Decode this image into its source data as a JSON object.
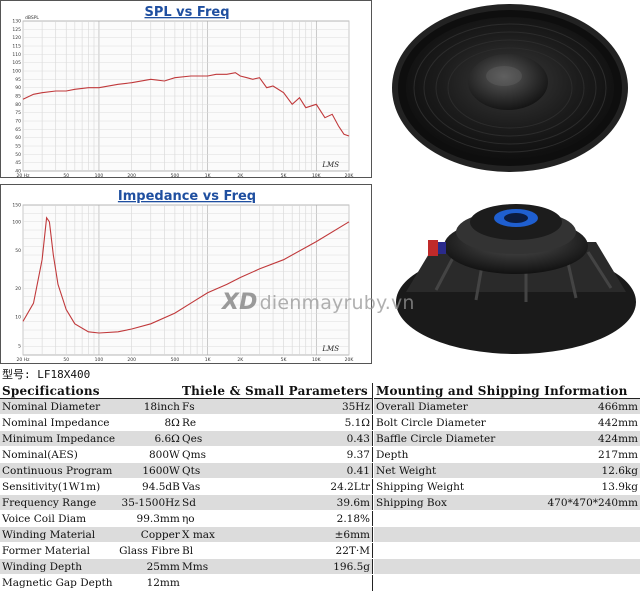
{
  "chart_data": [
    {
      "type": "line",
      "title": "SPL vs Freq",
      "y_unit": "dBSPL",
      "x_scale": "log",
      "xlim": [
        20,
        20000
      ],
      "ylim": [
        40,
        130
      ],
      "x_ticks": [
        "20 Hz",
        "50",
        "100",
        "200",
        "500",
        "1K",
        "2K",
        "5K",
        "10K",
        "20K"
      ],
      "y_ticks": [
        "130",
        "125",
        "120",
        "115",
        "110",
        "105",
        "100",
        "95",
        "90",
        "85",
        "80",
        "75",
        "70",
        "65",
        "60",
        "55",
        "50",
        "45",
        "40"
      ],
      "series": [
        {
          "x": [
            20,
            25,
            30,
            40,
            50,
            60,
            80,
            100,
            150,
            200,
            300,
            400,
            500,
            700,
            1000,
            1200,
            1500,
            1800,
            2000,
            2300,
            2600,
            3000,
            3500,
            4000,
            5000,
            6000,
            7000,
            8000,
            10000,
            12000,
            14000,
            16000,
            18000,
            20000
          ],
          "y": [
            83,
            86,
            87,
            88,
            88,
            89,
            90,
            90,
            92,
            93,
            95,
            94,
            96,
            97,
            97,
            98,
            98,
            99,
            97,
            96,
            95,
            96,
            90,
            91,
            87,
            80,
            84,
            78,
            80,
            72,
            74,
            67,
            62,
            61
          ]
        }
      ],
      "footer": "LMS"
    },
    {
      "type": "line",
      "title": "Impedance vs Freq",
      "x_scale": "log",
      "xlim": [
        20,
        20000
      ],
      "y_scale": "log",
      "ylim": [
        4,
        150
      ],
      "x_ticks": [
        "20 Hz",
        "50",
        "100",
        "200",
        "500",
        "1K",
        "2K",
        "5K",
        "10K",
        "20K"
      ],
      "y_ticks": [
        "150",
        "100",
        "50",
        "20",
        "10",
        "5"
      ],
      "series": [
        {
          "x": [
            20,
            25,
            30,
            33,
            35,
            38,
            42,
            50,
            60,
            80,
            100,
            150,
            200,
            300,
            500,
            700,
            1000,
            1500,
            2000,
            3000,
            5000,
            10000,
            20000
          ],
          "y": [
            9,
            14,
            40,
            110,
            100,
            45,
            22,
            12,
            8.5,
            7,
            6.8,
            7,
            7.5,
            8.5,
            11,
            14,
            18,
            22,
            26,
            32,
            40,
            62,
            100
          ]
        }
      ],
      "footer": "LMS"
    }
  ],
  "watermark": {
    "logo": "XD",
    "text": "dienmayruby.vn"
  },
  "model_label": "型号: LF18X400",
  "tables": {
    "specifications": {
      "title": "Specifications",
      "rows": [
        [
          "Nominal Diameter",
          "18inch"
        ],
        [
          "Nominal Impedance",
          "8Ω"
        ],
        [
          "Minimum Impedance",
          "6.6Ω"
        ],
        [
          "Nominal(AES)",
          "800W"
        ],
        [
          "Continuous Program",
          "1600W"
        ],
        [
          "Sensitivity(1W1m)",
          "94.5dB"
        ],
        [
          "Frequency Range",
          "35-1500Hz"
        ],
        [
          "Voice Coil Diam",
          "99.3mm"
        ],
        [
          "Winding Material",
          "Copper"
        ],
        [
          "Former Material",
          "Glass Fibre"
        ],
        [
          "Winding Depth",
          "25mm"
        ],
        [
          "Magnetic Gap Depth",
          "12mm"
        ]
      ]
    },
    "thiele_small": {
      "title": "Thiele & Small Parameters",
      "rows": [
        [
          "Fs",
          "35Hz"
        ],
        [
          "Re",
          "5.1Ω"
        ],
        [
          "Qes",
          "0.43"
        ],
        [
          "Qms",
          "9.37"
        ],
        [
          "Qts",
          "0.41"
        ],
        [
          "Vas",
          "24.2Ltr"
        ],
        [
          "Sd",
          "39.6m"
        ],
        [
          "ηo",
          "2.18%"
        ],
        [
          "X max",
          "±6mm"
        ],
        [
          "Bl",
          "22T·M"
        ],
        [
          "Mms",
          "196.5g"
        ]
      ]
    },
    "mounting": {
      "title": "Mounting and Shipping Information",
      "rows": [
        [
          "Overall Diameter",
          "466mm"
        ],
        [
          "Bolt Circle Diameter",
          "442mm"
        ],
        [
          "Baffle Circle Diameter",
          "424mm"
        ],
        [
          "Depth",
          "217mm"
        ],
        [
          "Net Weight",
          "12.6kg"
        ],
        [
          "Shipping Weight",
          "13.9kg"
        ],
        [
          "Shipping Box",
          "470*470*240mm"
        ]
      ]
    }
  },
  "colors": {
    "curve": "#c0393b",
    "title": "#1f4fa0",
    "row_shade": "#dcdcdc"
  }
}
